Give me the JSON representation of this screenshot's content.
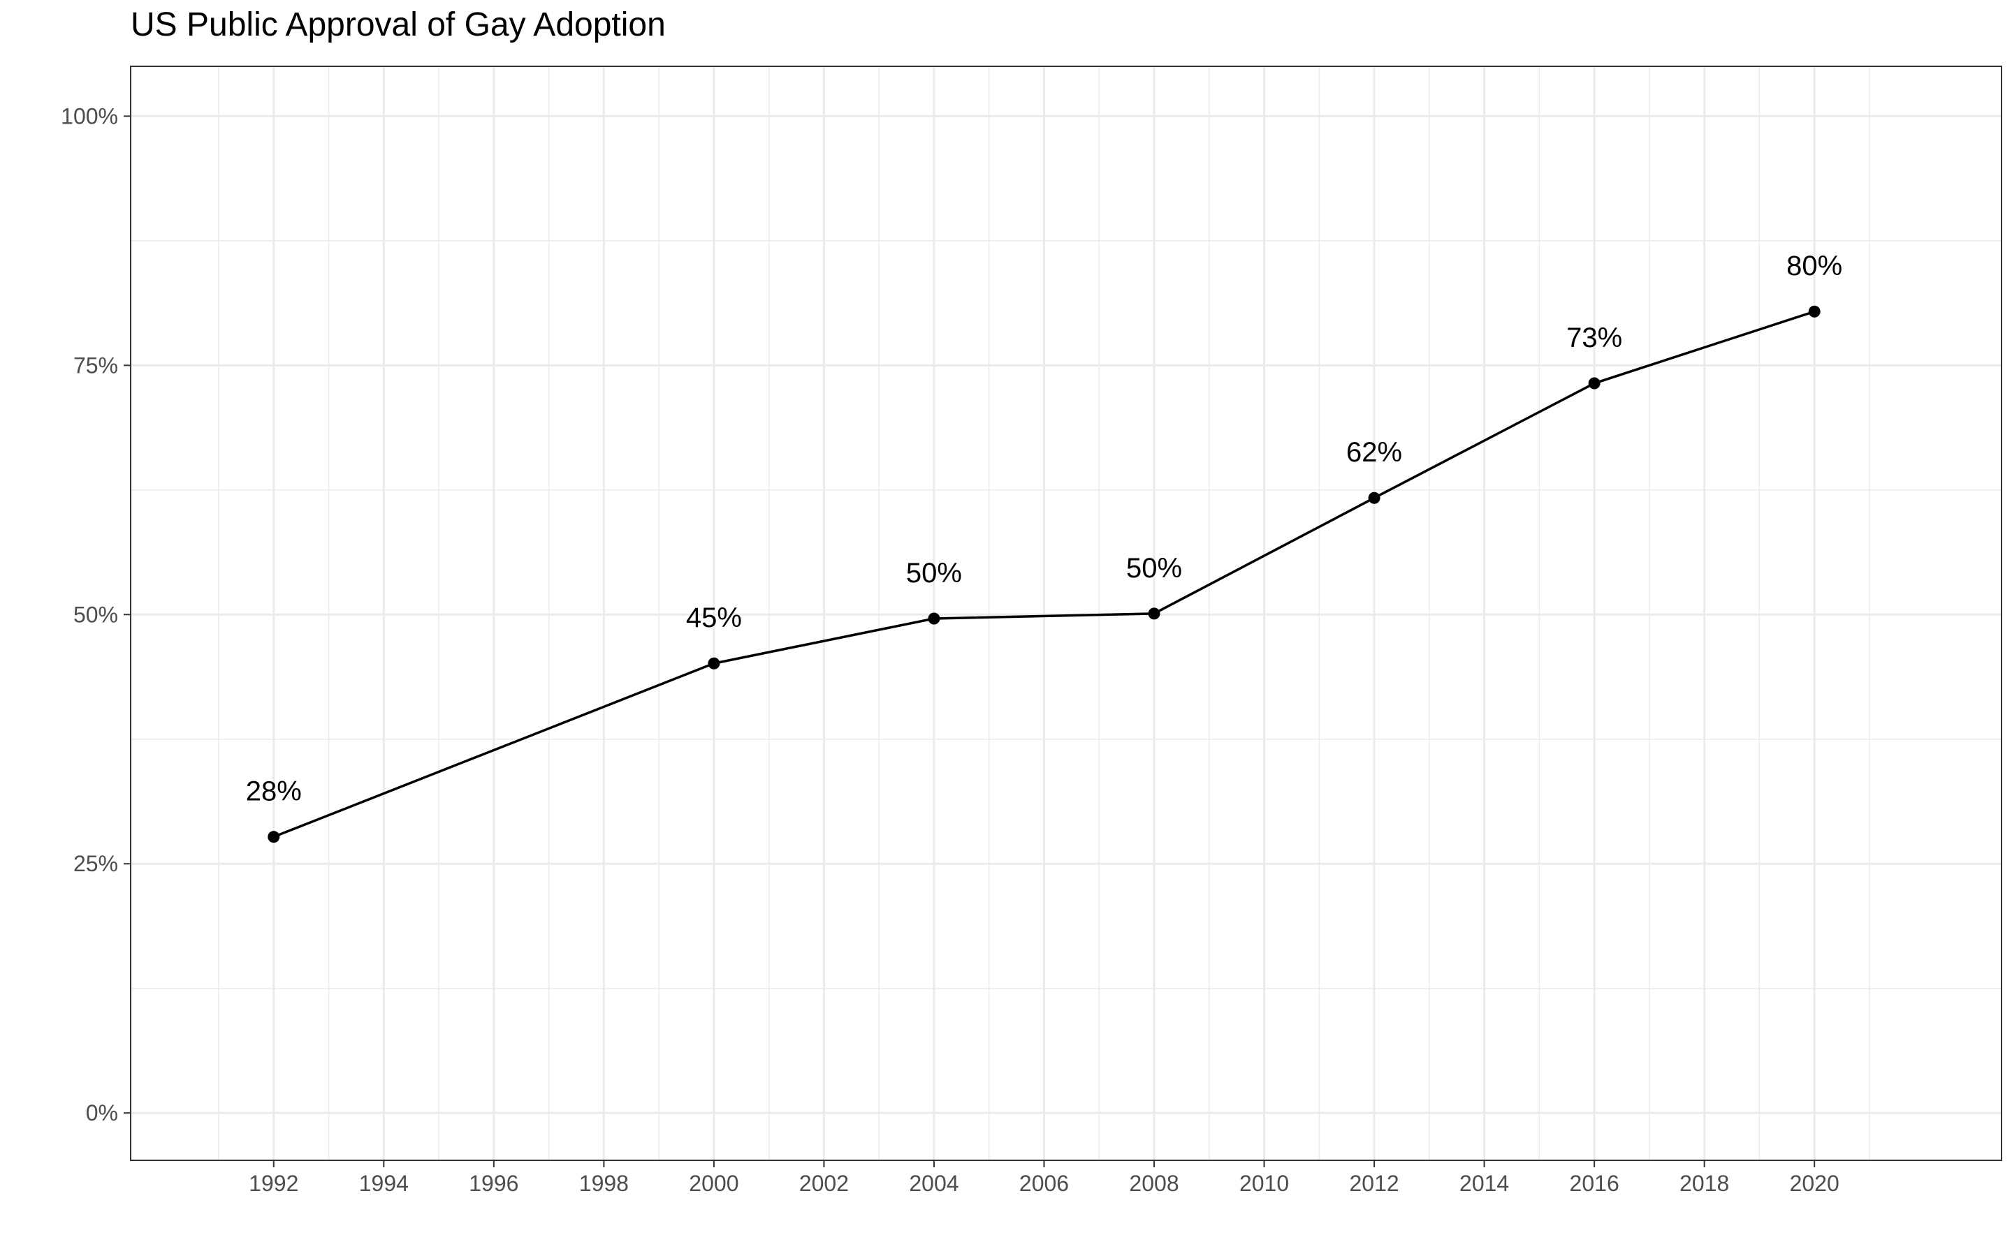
{
  "chart_data": {
    "type": "line",
    "title": "US Public Approval of Gay Adoption",
    "xlabel": "",
    "ylabel": "",
    "x": [
      1992,
      2000,
      2004,
      2008,
      2012,
      2016,
      2020
    ],
    "series": [
      {
        "values": [
          27.7,
          45.1,
          49.6,
          50.1,
          61.7,
          73.2,
          80.4
        ]
      }
    ],
    "data_labels": [
      "28%",
      "45%",
      "50%",
      "50%",
      "62%",
      "73%",
      "80%"
    ],
    "xlim": [
      1989.4,
      2023.4
    ],
    "ylim": [
      -4.75,
      105
    ],
    "x_ticks": [
      1992,
      1994,
      1996,
      1998,
      2000,
      2002,
      2004,
      2006,
      2008,
      2010,
      2012,
      2014,
      2016,
      2018,
      2020
    ],
    "x_tick_labels": [
      "1992",
      "1994",
      "1996",
      "1998",
      "2000",
      "2002",
      "2004",
      "2006",
      "2008",
      "2010",
      "2012",
      "2014",
      "2016",
      "2018",
      "2020"
    ],
    "y_ticks": [
      0,
      25,
      50,
      75,
      100
    ],
    "y_tick_labels": [
      "0%",
      "25%",
      "50%",
      "75%",
      "100%"
    ],
    "grid": true,
    "line_color": "#000000",
    "grid_color": "#ebebeb",
    "panel_border_color": "#333333",
    "tick_label_color": "#4d4d4d"
  }
}
